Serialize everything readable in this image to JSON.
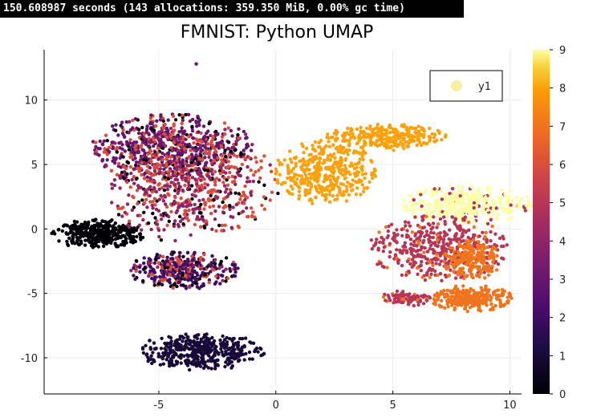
{
  "timing_line": "150.608987 seconds (143 allocations: 359.350 MiB, 0.00% gc time)",
  "chart_data": {
    "type": "scatter",
    "title": "FMNIST: Python UMAP",
    "xlabel": "",
    "ylabel": "",
    "xlim": [
      -9.9,
      10.5
    ],
    "ylim": [
      -12.8,
      13.9
    ],
    "xticks": [
      -5,
      0,
      5,
      10
    ],
    "xtick_labels": [
      "-5",
      "0",
      "5",
      "10"
    ],
    "yticks": [
      -10,
      -5,
      0,
      5,
      10
    ],
    "ytick_labels": [
      "-10",
      "-5",
      "0",
      "5",
      "10"
    ],
    "grid": true,
    "legend": {
      "position": "top-right",
      "entries": [
        "y1"
      ]
    },
    "colorbar": {
      "colormap": "inferno",
      "range": [
        0,
        9
      ],
      "ticks": [
        0,
        1,
        2,
        3,
        4,
        5,
        6,
        7,
        8,
        9
      ],
      "tick_labels": [
        "0",
        "1",
        "2",
        "3",
        "4",
        "5",
        "6",
        "7",
        "8",
        "9"
      ]
    },
    "clusters": [
      {
        "label": 1,
        "cx": -3.2,
        "cy": -9.5,
        "rx": 2.6,
        "ry": 1.4,
        "n": 420
      },
      {
        "label": 0,
        "cx": -7.6,
        "cy": -0.4,
        "rx": 1.9,
        "ry": 1.1,
        "n": 380
      },
      {
        "label": 3,
        "cx": -4.4,
        "cy": 6.2,
        "rx": 3.4,
        "ry": 2.6,
        "n": 700
      },
      {
        "label": 2,
        "cx": -3.9,
        "cy": -3.2,
        "rx": 2.3,
        "ry": 1.4,
        "n": 380
      },
      {
        "label": 6,
        "cx": -3.5,
        "cy": 3.5,
        "rx": 3.5,
        "ry": 4.0,
        "n": 330
      },
      {
        "label": 4,
        "cx": -4.0,
        "cy": 2.5,
        "rx": 3.0,
        "ry": 3.5,
        "n": 260
      },
      {
        "label": 8,
        "cx": 2.1,
        "cy": 4.5,
        "rx": 2.1,
        "ry": 2.5,
        "n": 420
      },
      {
        "label": 8,
        "cx": 4.7,
        "cy": 7.1,
        "rx": 2.5,
        "ry": 1.0,
        "n": 280
      },
      {
        "label": 9,
        "cx": 8.2,
        "cy": 1.9,
        "rx": 2.8,
        "ry": 1.4,
        "n": 360
      },
      {
        "label": 5,
        "cx": 7.0,
        "cy": -1.5,
        "rx": 2.9,
        "ry": 2.5,
        "n": 460
      },
      {
        "label": 5,
        "cx": 5.5,
        "cy": -5.4,
        "rx": 1.1,
        "ry": 0.6,
        "n": 90
      },
      {
        "label": 7,
        "cx": 8.4,
        "cy": -5.4,
        "rx": 1.7,
        "ry": 1.0,
        "n": 280
      },
      {
        "label": 7,
        "cx": 8.4,
        "cy": -2.4,
        "rx": 1.2,
        "ry": 1.5,
        "n": 200
      }
    ],
    "outliers": [
      {
        "x": -3.4,
        "y": 12.8,
        "label": 3
      }
    ]
  }
}
